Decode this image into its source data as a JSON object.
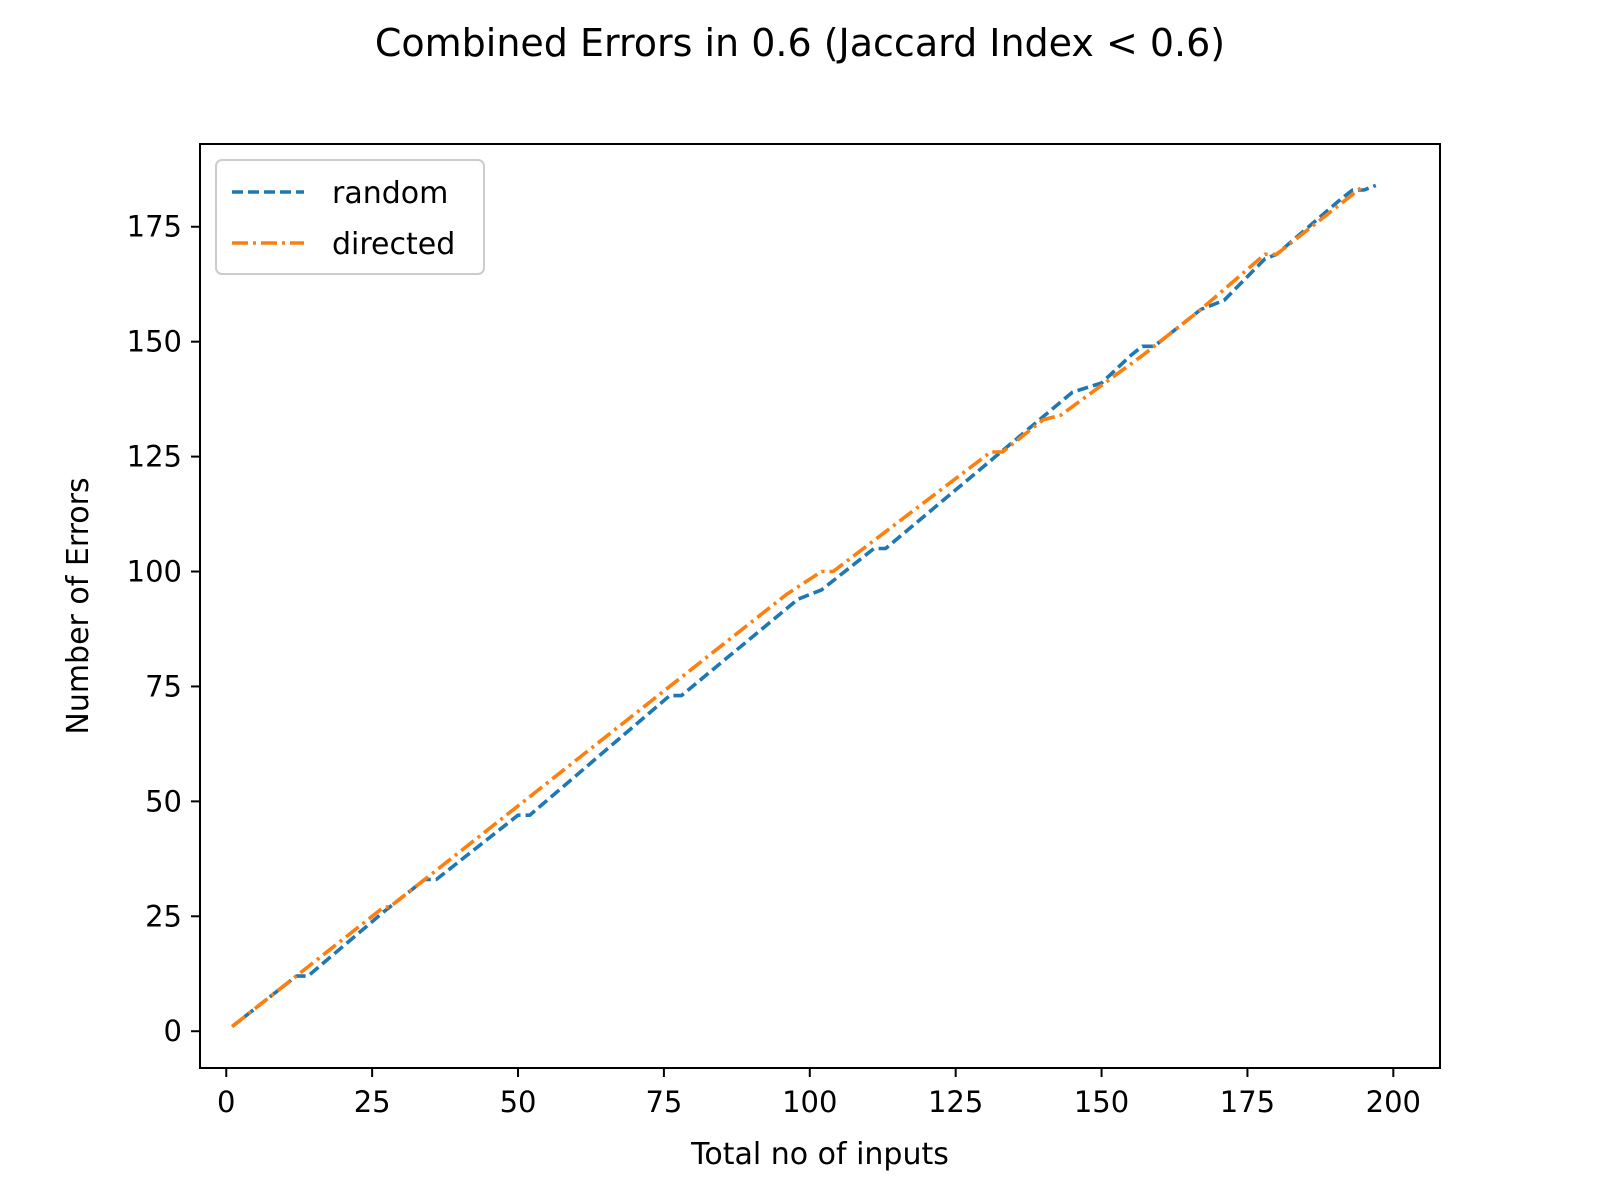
{
  "chart_data": {
    "type": "line",
    "title": "Combined Errors in 0.6 (Jaccard Index < 0.6)",
    "xlabel": "Total no of inputs",
    "ylabel": "Number of Errors",
    "xlim": [
      -4.5,
      208
    ],
    "ylim": [
      -8,
      193
    ],
    "xticks": [
      0,
      25,
      50,
      75,
      100,
      125,
      150,
      175,
      200
    ],
    "yticks": [
      0,
      25,
      50,
      75,
      100,
      125,
      150,
      175
    ],
    "xtick_labels": [
      "0",
      "25",
      "50",
      "75",
      "100",
      "125",
      "150",
      "175",
      "200"
    ],
    "ytick_labels": [
      "0",
      "25",
      "50",
      "75",
      "100",
      "125",
      "150",
      "175"
    ],
    "grid": false,
    "legend_position": "upper-left",
    "series": [
      {
        "name": "random",
        "color": "#1f77b4",
        "style": "dashed",
        "points": [
          [
            1,
            1
          ],
          [
            10,
            10
          ],
          [
            12,
            12
          ],
          [
            14,
            12
          ],
          [
            27,
            26
          ],
          [
            34,
            33
          ],
          [
            36,
            33
          ],
          [
            50,
            47
          ],
          [
            52,
            47
          ],
          [
            76,
            73
          ],
          [
            78,
            73
          ],
          [
            98,
            94
          ],
          [
            100,
            95
          ],
          [
            102,
            96
          ],
          [
            111,
            105
          ],
          [
            113,
            105
          ],
          [
            145,
            139
          ],
          [
            150,
            141
          ],
          [
            155,
            147
          ],
          [
            157,
            149
          ],
          [
            159,
            149
          ],
          [
            167,
            157
          ],
          [
            171,
            159
          ],
          [
            178,
            168
          ],
          [
            180,
            169
          ],
          [
            191,
            181
          ],
          [
            193,
            183
          ],
          [
            195,
            183
          ],
          [
            197,
            184
          ]
        ]
      },
      {
        "name": "directed",
        "color": "#ff7f0e",
        "style": "dashdot",
        "points": [
          [
            1,
            1
          ],
          [
            27,
            27
          ],
          [
            28,
            27
          ],
          [
            35,
            34
          ],
          [
            96,
            95
          ],
          [
            102,
            100
          ],
          [
            104,
            100
          ],
          [
            131,
            126
          ],
          [
            133,
            126
          ],
          [
            138,
            131
          ],
          [
            140,
            133
          ],
          [
            143,
            134
          ],
          [
            157,
            147
          ],
          [
            159,
            149
          ],
          [
            167,
            157
          ],
          [
            178,
            169
          ],
          [
            180,
            169
          ],
          [
            195,
            184
          ]
        ]
      }
    ]
  }
}
